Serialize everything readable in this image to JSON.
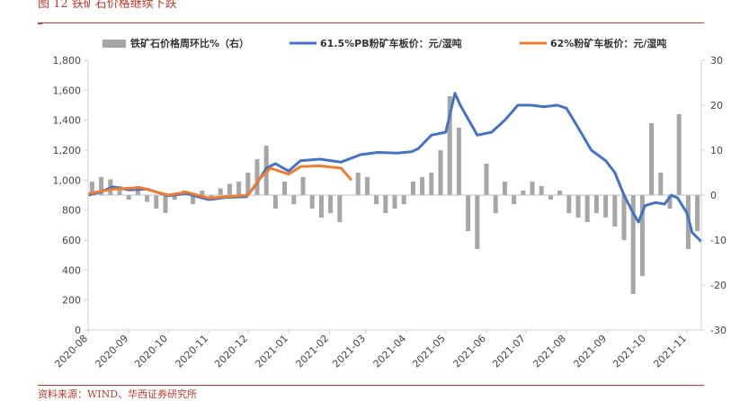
{
  "header": {
    "figure_title": "图 12   铁矿石价格继续下跌"
  },
  "footer": {
    "source": "资料来源：WIND、华西证券研究所"
  },
  "colors": {
    "bars": "#a6a6a6",
    "pb_line": "#4472c4",
    "line62": "#ed7d31",
    "accent": "#c0392b"
  },
  "chart_data": {
    "type": "bar+line",
    "title": "",
    "legend_position": "top",
    "grid": false,
    "x_categories": [
      "2020-08",
      "2020-09",
      "2020-10",
      "2020-11",
      "2020-12",
      "2021-01",
      "2021-02",
      "2021-03",
      "2021-04",
      "2021-05",
      "2021-06",
      "2021-07",
      "2021-08",
      "2021-09",
      "2021-10",
      "2021-11"
    ],
    "x_range": [
      "2020-08-01",
      "2021-11-12"
    ],
    "y_left": {
      "min": 0,
      "max": 1800,
      "ticks": [
        "0",
        "200",
        "400",
        "600",
        "800",
        "1,000",
        "1,200",
        "1,400",
        "1,600",
        "1,800"
      ]
    },
    "y_right": {
      "min": -30,
      "max": 30,
      "ticks": [
        "-30",
        "-20",
        "-10",
        "0",
        "10",
        "20",
        "30"
      ]
    },
    "series": [
      {
        "name": "铁矿石价格周环比%（右）",
        "type": "bar",
        "axis": "right",
        "points": [
          [
            "2020-08-04",
            3
          ],
          [
            "2020-08-11",
            4
          ],
          [
            "2020-08-18",
            3.5
          ],
          [
            "2020-08-25",
            2
          ],
          [
            "2020-09-01",
            -1
          ],
          [
            "2020-09-08",
            2
          ],
          [
            "2020-09-15",
            -1.5
          ],
          [
            "2020-09-22",
            -3
          ],
          [
            "2020-09-29",
            -4
          ],
          [
            "2020-10-06",
            -1
          ],
          [
            "2020-10-13",
            1
          ],
          [
            "2020-10-20",
            -2
          ],
          [
            "2020-10-27",
            1
          ],
          [
            "2020-11-03",
            -1
          ],
          [
            "2020-11-10",
            1.5
          ],
          [
            "2020-11-17",
            2.5
          ],
          [
            "2020-11-24",
            3
          ],
          [
            "2020-12-01",
            5
          ],
          [
            "2020-12-08",
            8
          ],
          [
            "2020-12-15",
            11
          ],
          [
            "2020-12-22",
            -3
          ],
          [
            "2020-12-29",
            3
          ],
          [
            "2021-01-05",
            -2
          ],
          [
            "2021-01-12",
            4
          ],
          [
            "2021-01-19",
            -3
          ],
          [
            "2021-01-26",
            -5
          ],
          [
            "2021-02-02",
            -4
          ],
          [
            "2021-02-09",
            -6
          ],
          [
            "2021-02-23",
            5
          ],
          [
            "2021-03-02",
            4
          ],
          [
            "2021-03-09",
            -2
          ],
          [
            "2021-03-16",
            -4
          ],
          [
            "2021-03-23",
            -3
          ],
          [
            "2021-03-30",
            -2
          ],
          [
            "2021-04-06",
            3
          ],
          [
            "2021-04-13",
            4
          ],
          [
            "2021-04-20",
            5
          ],
          [
            "2021-04-27",
            10
          ],
          [
            "2021-05-04",
            22
          ],
          [
            "2021-05-11",
            15
          ],
          [
            "2021-05-18",
            -8
          ],
          [
            "2021-05-25",
            -12
          ],
          [
            "2021-06-01",
            7
          ],
          [
            "2021-06-08",
            -4
          ],
          [
            "2021-06-15",
            3
          ],
          [
            "2021-06-22",
            -2
          ],
          [
            "2021-06-29",
            1
          ],
          [
            "2021-07-06",
            3
          ],
          [
            "2021-07-13",
            2
          ],
          [
            "2021-07-20",
            -1
          ],
          [
            "2021-07-27",
            1
          ],
          [
            "2021-08-03",
            -4
          ],
          [
            "2021-08-10",
            -5
          ],
          [
            "2021-08-17",
            -6
          ],
          [
            "2021-08-24",
            -4
          ],
          [
            "2021-08-31",
            -5
          ],
          [
            "2021-09-07",
            -7
          ],
          [
            "2021-09-14",
            -10
          ],
          [
            "2021-09-21",
            -22
          ],
          [
            "2021-09-28",
            -18
          ],
          [
            "2021-10-05",
            16
          ],
          [
            "2021-10-12",
            5
          ],
          [
            "2021-10-19",
            -3
          ],
          [
            "2021-10-26",
            18
          ],
          [
            "2021-11-02",
            -12
          ],
          [
            "2021-11-09",
            -8
          ]
        ]
      },
      {
        "name": "61.5%PB粉矿车板价：元/湿吨",
        "type": "line",
        "axis": "left",
        "points": [
          [
            "2020-08-01",
            900
          ],
          [
            "2020-08-10",
            920
          ],
          [
            "2020-08-20",
            955
          ],
          [
            "2020-09-01",
            935
          ],
          [
            "2020-09-15",
            940
          ],
          [
            "2020-10-01",
            895
          ],
          [
            "2020-10-15",
            910
          ],
          [
            "2020-11-01",
            870
          ],
          [
            "2020-11-15",
            885
          ],
          [
            "2020-11-30",
            890
          ],
          [
            "2020-12-08",
            980
          ],
          [
            "2020-12-15",
            1080
          ],
          [
            "2020-12-22",
            1110
          ],
          [
            "2021-01-01",
            1060
          ],
          [
            "2021-01-10",
            1130
          ],
          [
            "2021-01-25",
            1140
          ],
          [
            "2021-02-10",
            1120
          ],
          [
            "2021-02-25",
            1170
          ],
          [
            "2021-03-10",
            1185
          ],
          [
            "2021-03-25",
            1180
          ],
          [
            "2021-04-05",
            1190
          ],
          [
            "2021-04-10",
            1210
          ],
          [
            "2021-04-20",
            1300
          ],
          [
            "2021-05-01",
            1320
          ],
          [
            "2021-05-08",
            1580
          ],
          [
            "2021-05-12",
            1500
          ],
          [
            "2021-05-25",
            1300
          ],
          [
            "2021-06-05",
            1320
          ],
          [
            "2021-06-15",
            1400
          ],
          [
            "2021-06-25",
            1500
          ],
          [
            "2021-07-05",
            1500
          ],
          [
            "2021-07-15",
            1490
          ],
          [
            "2021-07-25",
            1500
          ],
          [
            "2021-08-01",
            1480
          ],
          [
            "2021-08-10",
            1350
          ],
          [
            "2021-08-20",
            1200
          ],
          [
            "2021-08-31",
            1130
          ],
          [
            "2021-09-07",
            1050
          ],
          [
            "2021-09-14",
            900
          ],
          [
            "2021-09-21",
            780
          ],
          [
            "2021-09-25",
            720
          ],
          [
            "2021-09-30",
            830
          ],
          [
            "2021-10-08",
            850
          ],
          [
            "2021-10-15",
            840
          ],
          [
            "2021-10-20",
            900
          ],
          [
            "2021-10-25",
            880
          ],
          [
            "2021-11-01",
            780
          ],
          [
            "2021-11-05",
            650
          ],
          [
            "2021-11-12",
            590
          ]
        ]
      },
      {
        "name": "62%粉矿车板价：元/湿吨",
        "type": "line",
        "axis": "left",
        "points": [
          [
            "2020-08-01",
            910
          ],
          [
            "2020-08-20",
            940
          ],
          [
            "2020-09-10",
            950
          ],
          [
            "2020-10-01",
            900
          ],
          [
            "2020-10-15",
            920
          ],
          [
            "2020-11-01",
            880
          ],
          [
            "2020-11-15",
            890
          ],
          [
            "2020-12-01",
            900
          ],
          [
            "2020-12-10",
            1010
          ],
          [
            "2020-12-18",
            1080
          ],
          [
            "2021-01-01",
            1040
          ],
          [
            "2021-01-10",
            1090
          ],
          [
            "2021-01-25",
            1095
          ],
          [
            "2021-02-10",
            1080
          ],
          [
            "2021-02-18",
            1000
          ]
        ]
      }
    ]
  }
}
